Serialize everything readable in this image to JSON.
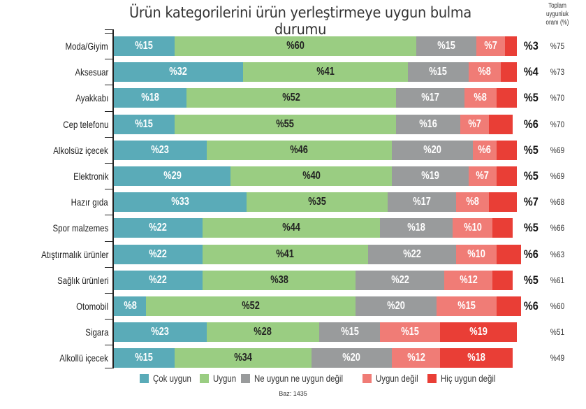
{
  "chart_data": {
    "type": "bar",
    "orientation": "horizontal",
    "stacked": true,
    "title": "Ürün kategorilerini ürün yerleştirmeye uygun bulma durumu",
    "right_column_header": "Toplam uygunluk oranı (%)",
    "xlabel": "",
    "ylabel": "",
    "xlim": [
      0,
      100
    ],
    "grid": false,
    "legend_position": "bottom",
    "categories": [
      "Moda/Giyim",
      "Aksesuar",
      "Ayakkabı",
      "Cep telefonu",
      "Alkolsüz içecek",
      "Elektronik",
      "Hazır gıda",
      "Spor malzemes",
      "Atıştırmalık ürünler",
      "Sağlık ürünleri",
      "Otomobil",
      "Sigara",
      "Alkollü içecek"
    ],
    "series": [
      {
        "name": "Çok uygun",
        "color": "#5aabb8",
        "values": [
          15,
          32,
          18,
          15,
          23,
          29,
          33,
          22,
          22,
          22,
          8,
          23,
          15
        ]
      },
      {
        "name": "Uygun",
        "color": "#9acd82",
        "values": [
          60,
          41,
          52,
          55,
          46,
          40,
          35,
          44,
          41,
          38,
          52,
          28,
          34
        ]
      },
      {
        "name": "Ne uygun ne uygun değil",
        "color": "#999b9c",
        "values": [
          15,
          15,
          17,
          16,
          20,
          19,
          17,
          18,
          22,
          22,
          20,
          15,
          20
        ]
      },
      {
        "name": "Uygun değil",
        "color": "#f07c76",
        "values": [
          7,
          8,
          8,
          7,
          6,
          7,
          8,
          10,
          10,
          12,
          15,
          15,
          12
        ]
      },
      {
        "name": "Hiç uygun değil",
        "color": "#e93e36",
        "values": [
          3,
          4,
          5,
          6,
          5,
          5,
          7,
          5,
          6,
          5,
          6,
          19,
          18
        ]
      }
    ],
    "total_suitability": [
      75,
      73,
      70,
      70,
      69,
      69,
      68,
      66,
      63,
      61,
      60,
      51,
      49
    ],
    "note": "Baz: 1435"
  },
  "title": "Ürün kategorilerini ürün yerleştirmeye uygun bulma durumu",
  "total_header": [
    "Toplam",
    "uygunluk",
    "oranı (%)"
  ],
  "base_note": "Baz: 1435",
  "legend": [
    {
      "label": "Çok uygun",
      "color": "#5aabb8"
    },
    {
      "label": "Uygun",
      "color": "#9acd82"
    },
    {
      "label": "Ne uygun ne uygun değil",
      "color": "#999b9c"
    },
    {
      "label": "Uygun değil",
      "color": "#f07c76"
    },
    {
      "label": "Hiç uygun değil",
      "color": "#e93e36"
    }
  ],
  "rows": [
    {
      "label": "Moda/Giyim",
      "labels": [
        "%15",
        "%60",
        "%15",
        "%7",
        ""
      ],
      "outside": "%3",
      "total": "%75"
    },
    {
      "label": "Aksesuar",
      "labels": [
        "%32",
        "%41",
        "%15",
        "%8",
        ""
      ],
      "outside": "%4",
      "total": "%73"
    },
    {
      "label": "Ayakkabı",
      "labels": [
        "%18",
        "%52",
        "%17",
        "%8",
        ""
      ],
      "outside": "%5",
      "total": "%70"
    },
    {
      "label": "Cep telefonu",
      "labels": [
        "%15",
        "%55",
        "%16",
        "%7",
        ""
      ],
      "outside": "%6",
      "total": "%70"
    },
    {
      "label": "Alkolsüz içecek",
      "labels": [
        "%23",
        "%46",
        "%20",
        "%6",
        ""
      ],
      "outside": "%5",
      "total": "%69"
    },
    {
      "label": "Elektronik",
      "labels": [
        "%29",
        "%40",
        "%19",
        "%7",
        ""
      ],
      "outside": "%5",
      "total": "%69"
    },
    {
      "label": "Hazır gıda",
      "labels": [
        "%33",
        "%35",
        "%17",
        "%8",
        ""
      ],
      "outside": "%7",
      "total": "%68"
    },
    {
      "label": "Spor malzemes",
      "labels": [
        "%22",
        "%44",
        "%18",
        "%10",
        ""
      ],
      "outside": "%5",
      "total": "%66"
    },
    {
      "label": "Atıştırmalık ürünler",
      "labels": [
        "%22",
        "%41",
        "%22",
        "%10",
        ""
      ],
      "outside": "%6",
      "total": "%63"
    },
    {
      "label": "Sağlık ürünleri",
      "labels": [
        "%22",
        "%38",
        "%22",
        "%12",
        ""
      ],
      "outside": "%5",
      "total": "%61"
    },
    {
      "label": "Otomobil",
      "labels": [
        "%8",
        "%52",
        "%20",
        "%15",
        ""
      ],
      "outside": "%6",
      "total": "%60"
    },
    {
      "label": "Sigara",
      "labels": [
        "%23",
        "%28",
        "%15",
        "%15",
        "%19"
      ],
      "outside": "",
      "total": "%51"
    },
    {
      "label": "Alkollü içecek",
      "labels": [
        "%15",
        "%34",
        "%20",
        "%12",
        "%18"
      ],
      "outside": "",
      "total": "%49"
    }
  ]
}
